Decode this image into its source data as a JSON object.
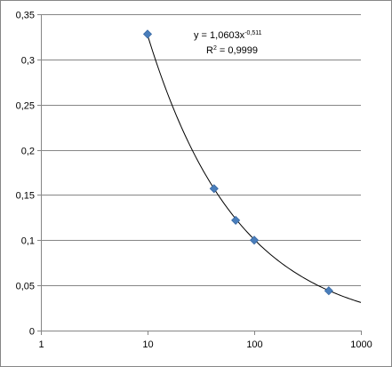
{
  "chart_data": {
    "type": "scatter",
    "x_scale": "log",
    "xlim": [
      1,
      1000
    ],
    "ylim": [
      0,
      0.35
    ],
    "x_ticks": [
      1,
      10,
      100,
      1000
    ],
    "x_tick_labels": [
      "1",
      "10",
      "100",
      "1000"
    ],
    "y_ticks": [
      0,
      0.05,
      0.1,
      0.15,
      0.2,
      0.25,
      0.3,
      0.35
    ],
    "y_tick_labels": [
      "0",
      "0,05",
      "0,1",
      "0,15",
      "0,2",
      "0,25",
      "0,3",
      "0,35"
    ],
    "grid": "horizontal",
    "points": [
      {
        "x": 10,
        "y": 0.328
      },
      {
        "x": 42,
        "y": 0.157
      },
      {
        "x": 67,
        "y": 0.122
      },
      {
        "x": 100,
        "y": 0.1
      },
      {
        "x": 500,
        "y": 0.044
      }
    ],
    "marker_color": "#4a7ebb",
    "trendline": {
      "type": "power",
      "coefficient": 1.0603,
      "exponent": -0.511,
      "x_from": 10,
      "x_to": 1000,
      "equation_prefix": "y = 1,0603x",
      "equation_exponent": "-0,511",
      "r2_prefix": "R",
      "r2_exponent": "2",
      "r2_value": " = 0,9999"
    }
  }
}
